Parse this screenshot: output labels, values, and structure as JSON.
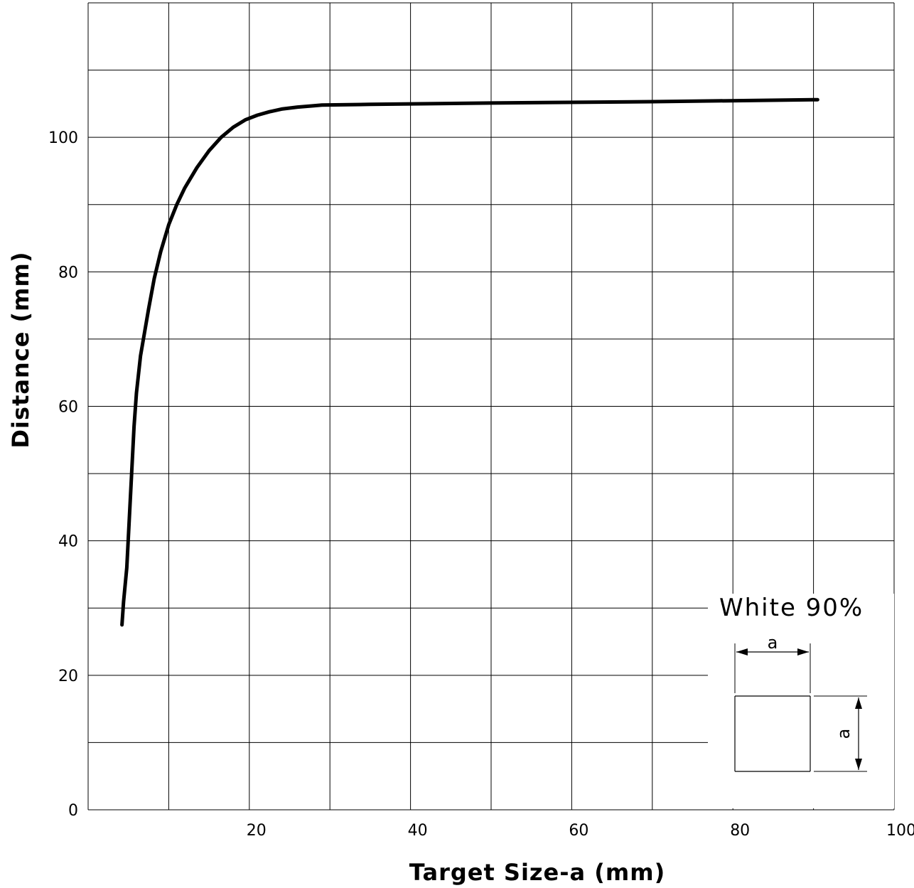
{
  "chart_data": {
    "type": "line",
    "xlabel": "Target Size-a (mm)",
    "ylabel": "Distance (mm)",
    "xlim": [
      0,
      100
    ],
    "ylim": [
      0,
      120
    ],
    "x_ticks": [
      20,
      40,
      60,
      80,
      100
    ],
    "y_ticks": [
      0,
      20,
      40,
      60,
      80,
      100
    ],
    "grid": true,
    "series": [
      {
        "x": [
          4.2,
          4.4,
          4.8,
          5.1,
          5.4,
          5.7,
          6.0,
          6.5,
          7.0,
          7.5,
          8.2,
          9.0,
          10.0,
          11.0,
          12.0,
          13.5,
          15.0,
          16.5,
          18.0,
          19.5,
          21.0,
          22.5,
          24.0,
          26.0,
          28.0,
          29.0,
          35.0,
          50.0,
          70.0,
          90.5
        ],
        "y": [
          27.5,
          31.0,
          36.0,
          43.0,
          50.0,
          57.0,
          62.0,
          67.5,
          71.0,
          74.5,
          79.0,
          83.0,
          87.0,
          90.0,
          92.5,
          95.5,
          98.0,
          100.0,
          101.5,
          102.6,
          103.3,
          103.8,
          104.2,
          104.5,
          104.7,
          104.8,
          104.9,
          105.1,
          105.3,
          105.6
        ]
      }
    ]
  },
  "legend_note": {
    "label": "White 90%",
    "dim_width": "a",
    "dim_height": "a"
  }
}
